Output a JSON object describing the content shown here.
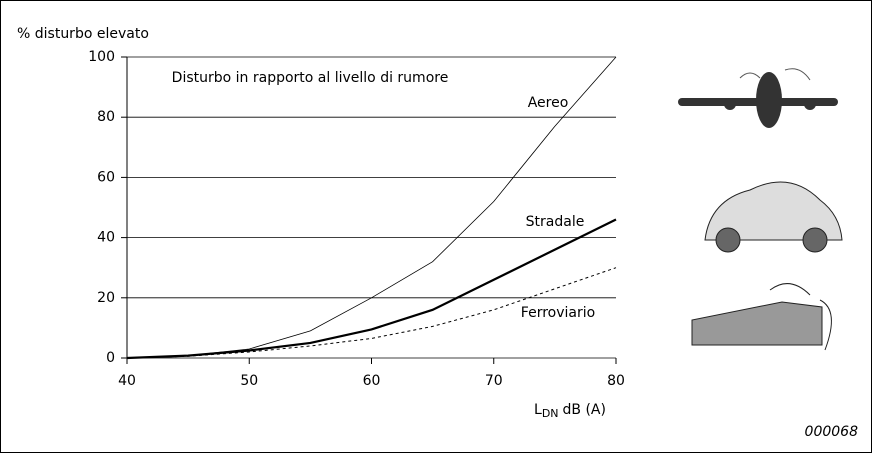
{
  "chart_data": {
    "type": "line",
    "title": "Disturbo in rapporto al livello di rumore",
    "y_label": "% disturbo elevato",
    "x_label": {
      "base": "L",
      "sub": "DN",
      "rest": "dB (A)"
    },
    "code": "000068",
    "x": [
      40,
      45,
      50,
      55,
      60,
      65,
      70,
      75,
      80
    ],
    "series": [
      {
        "name": "Aereo",
        "color": "#000000",
        "line_width": 0.8,
        "dashed": false,
        "values": [
          0,
          0.8,
          3,
          9,
          20,
          32,
          52,
          77,
          100
        ]
      },
      {
        "name": "Stradale",
        "color": "#000000",
        "line_width": 2.2,
        "dashed": false,
        "values": [
          0,
          0.8,
          2.5,
          5,
          9.5,
          16,
          26,
          36,
          46
        ]
      },
      {
        "name": "Ferroviario",
        "color": "#000000",
        "line_width": 1,
        "dashed": true,
        "values": [
          0,
          0.6,
          2,
          4,
          6.5,
          10.5,
          16,
          23,
          30
        ]
      }
    ],
    "xlim": [
      40,
      80
    ],
    "xticks": [
      40,
      50,
      60,
      70,
      80
    ],
    "ylim": [
      0,
      100
    ],
    "yticks": [
      0,
      20,
      40,
      60,
      80,
      100
    ],
    "grid": true
  }
}
